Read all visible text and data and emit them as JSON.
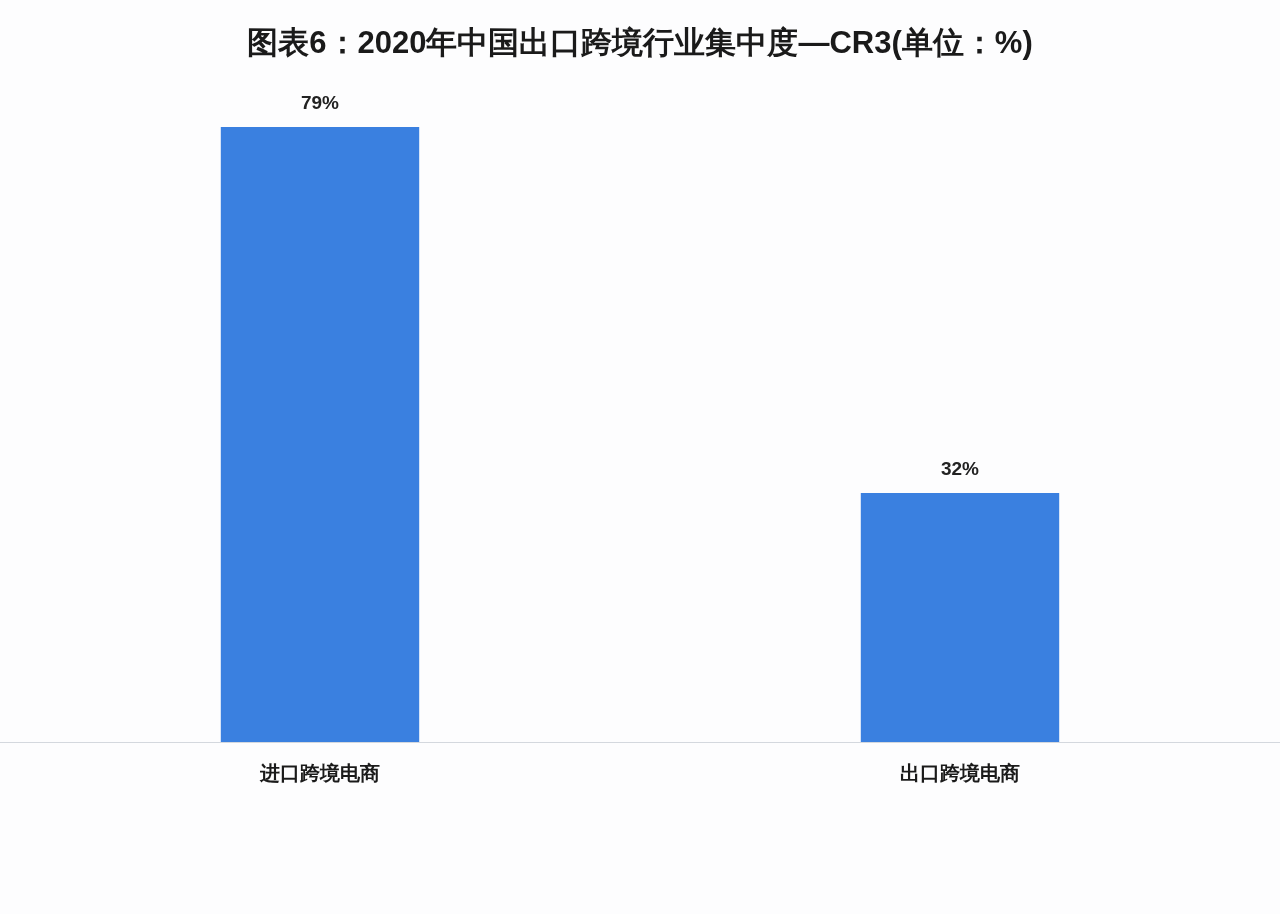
{
  "chart_data": {
    "type": "bar",
    "title": "图表6：2020年中国出口跨境行业集中度—CR3(单位：%)",
    "categories": [
      "进口跨境电商",
      "出口跨境电商"
    ],
    "values": [
      79,
      32
    ],
    "color": "#3a80e0",
    "value_labels": [
      "79%",
      "32%"
    ],
    "tick_labels": "x"
  }
}
